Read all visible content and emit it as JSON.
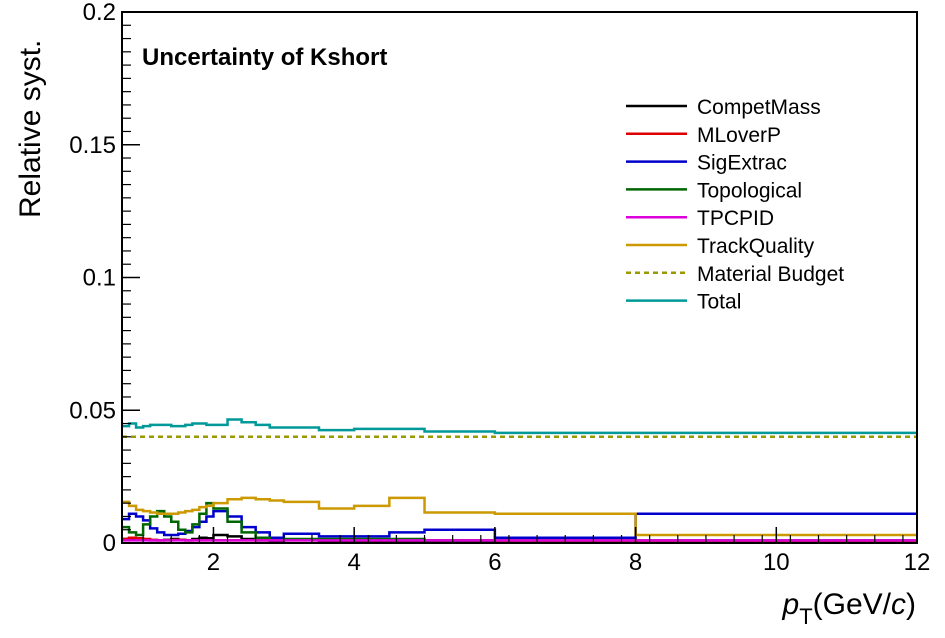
{
  "chart_data": {
    "type": "line",
    "title": "Uncertainty of Kshort",
    "xlabel_symbol": "p",
    "xlabel_sub": "T",
    "xlabel_unit_open": "(GeV/",
    "xlabel_unit_c": "c",
    "xlabel_unit_close": ")",
    "ylabel": "Relative syst.",
    "xlim": [
      0.7,
      12
    ],
    "ylim": [
      0,
      0.2
    ],
    "xticks": [
      2,
      4,
      6,
      8,
      10,
      12
    ],
    "xtick_labels": [
      "2",
      "4",
      "6",
      "8",
      "10",
      "12"
    ],
    "yticks": [
      0,
      0.05,
      0.1,
      0.15,
      0.2
    ],
    "ytick_labels": [
      "0",
      "0.05",
      "0.1",
      "0.15",
      "0.2"
    ],
    "grid": false,
    "legend_position": "top-right",
    "bin_edges": [
      0.7,
      0.8,
      0.9,
      1.0,
      1.1,
      1.2,
      1.3,
      1.4,
      1.5,
      1.6,
      1.7,
      1.8,
      1.9,
      2.0,
      2.2,
      2.4,
      2.6,
      2.8,
      3.0,
      3.5,
      4.0,
      4.5,
      5.0,
      6.0,
      8.0,
      12.0
    ],
    "series": [
      {
        "name": "CompetMass",
        "color": "#000000",
        "dashed": false,
        "values": [
          0.0015,
          0.0018,
          0.0015,
          0.0012,
          0.001,
          0.001,
          0.0012,
          0.0015,
          0.0012,
          0.001,
          0.0015,
          0.002,
          0.0018,
          0.003,
          0.0025,
          0.0015,
          0.001,
          0.0008,
          0.0012,
          0.0005,
          0.0005,
          0.0005,
          0.0005,
          0.0003,
          0.0003
        ]
      },
      {
        "name": "MLoverP",
        "color": "#dd0000",
        "dashed": false,
        "values": [
          0.0015,
          0.002,
          0.0018,
          0.0015,
          0.0012,
          0.001,
          0.001,
          0.0012,
          0.0012,
          0.001,
          0.001,
          0.001,
          0.001,
          0.001,
          0.001,
          0.001,
          0.001,
          0.001,
          0.001,
          0.001,
          0.001,
          0.001,
          0.001,
          0.0008,
          0.0008
        ]
      },
      {
        "name": "SigExtrac",
        "color": "#0000cc",
        "dashed": false,
        "values": [
          0.009,
          0.011,
          0.01,
          0.0085,
          0.0055,
          0.004,
          0.003,
          0.003,
          0.0035,
          0.0045,
          0.006,
          0.008,
          0.01,
          0.012,
          0.01,
          0.006,
          0.004,
          0.002,
          0.0035,
          0.0025,
          0.0025,
          0.004,
          0.005,
          0.002,
          0.011
        ]
      },
      {
        "name": "Topological",
        "color": "#006600",
        "dashed": false,
        "values": [
          0.006,
          0.004,
          0.003,
          0.007,
          0.01,
          0.012,
          0.01,
          0.008,
          0.005,
          0.004,
          0.007,
          0.011,
          0.015,
          0.013,
          0.008,
          0.004,
          0.002,
          0.001,
          0.0015,
          0.0015,
          0.0015,
          0.0015,
          0.001,
          0.001,
          0.001
        ]
      },
      {
        "name": "TPCPID",
        "color": "#dd00dd",
        "dashed": false,
        "values": [
          0.001,
          0.001,
          0.001,
          0.001,
          0.001,
          0.001,
          0.001,
          0.001,
          0.001,
          0.001,
          0.001,
          0.001,
          0.001,
          0.001,
          0.001,
          0.001,
          0.001,
          0.001,
          0.001,
          0.001,
          0.001,
          0.001,
          0.001,
          0.001,
          0.001
        ]
      },
      {
        "name": "TrackQuality",
        "color": "#cc9900",
        "dashed": false,
        "values": [
          0.0155,
          0.014,
          0.0125,
          0.012,
          0.0115,
          0.011,
          0.011,
          0.011,
          0.0115,
          0.012,
          0.0125,
          0.0135,
          0.014,
          0.015,
          0.0165,
          0.017,
          0.0165,
          0.016,
          0.0155,
          0.013,
          0.014,
          0.017,
          0.0115,
          0.011,
          0.003
        ]
      },
      {
        "name": "Material Budget",
        "color": "#999900",
        "dashed": true,
        "values": [
          0.04,
          0.04,
          0.04,
          0.04,
          0.04,
          0.04,
          0.04,
          0.04,
          0.04,
          0.04,
          0.04,
          0.04,
          0.04,
          0.04,
          0.04,
          0.04,
          0.04,
          0.04,
          0.04,
          0.04,
          0.04,
          0.04,
          0.04,
          0.04,
          0.04
        ]
      },
      {
        "name": "Total",
        "color": "#009999",
        "dashed": false,
        "values": [
          0.044,
          0.045,
          0.0435,
          0.044,
          0.0445,
          0.0445,
          0.0445,
          0.044,
          0.044,
          0.0445,
          0.045,
          0.045,
          0.0445,
          0.0445,
          0.0465,
          0.0455,
          0.0445,
          0.0435,
          0.0435,
          0.0425,
          0.043,
          0.043,
          0.042,
          0.0415,
          0.0415
        ]
      }
    ]
  }
}
